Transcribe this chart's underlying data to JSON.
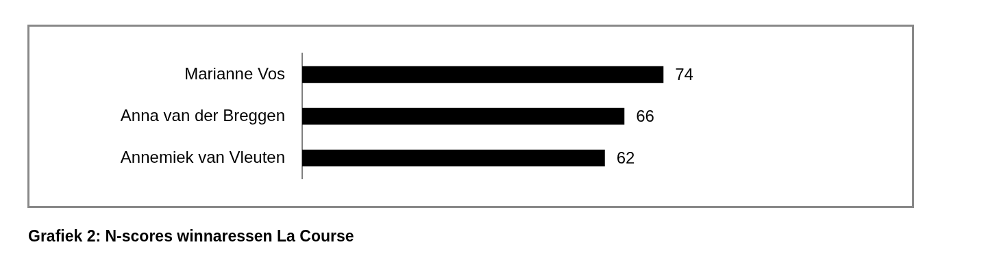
{
  "chart_data": {
    "type": "bar",
    "orientation": "horizontal",
    "title": "Grafiek 2: N-scores winnaressen La Course",
    "categories": [
      "Marianne Vos",
      "Anna van der Breggen",
      "Annemiek van Vleuten"
    ],
    "values": [
      74,
      66,
      62
    ],
    "color": "#000000",
    "data_labels": true
  }
}
